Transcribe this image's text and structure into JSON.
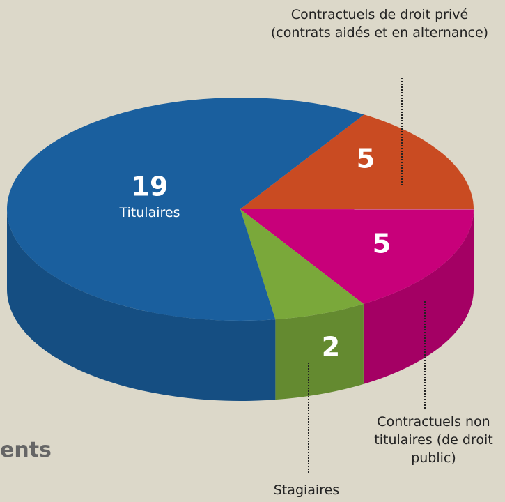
{
  "chart_data": {
    "type": "pie3d",
    "categories": [
      "Contractuels de droit privé (contrats aidés et en alternance)",
      "Contractuels non titulaires (de droit public)",
      "Stagiaires",
      "Titulaires"
    ],
    "values": [
      5,
      5,
      2,
      19
    ],
    "colors": [
      "#c94b22",
      "#c8007a",
      "#7aa83a",
      "#1a5f9e"
    ],
    "caption": "ents"
  }
}
